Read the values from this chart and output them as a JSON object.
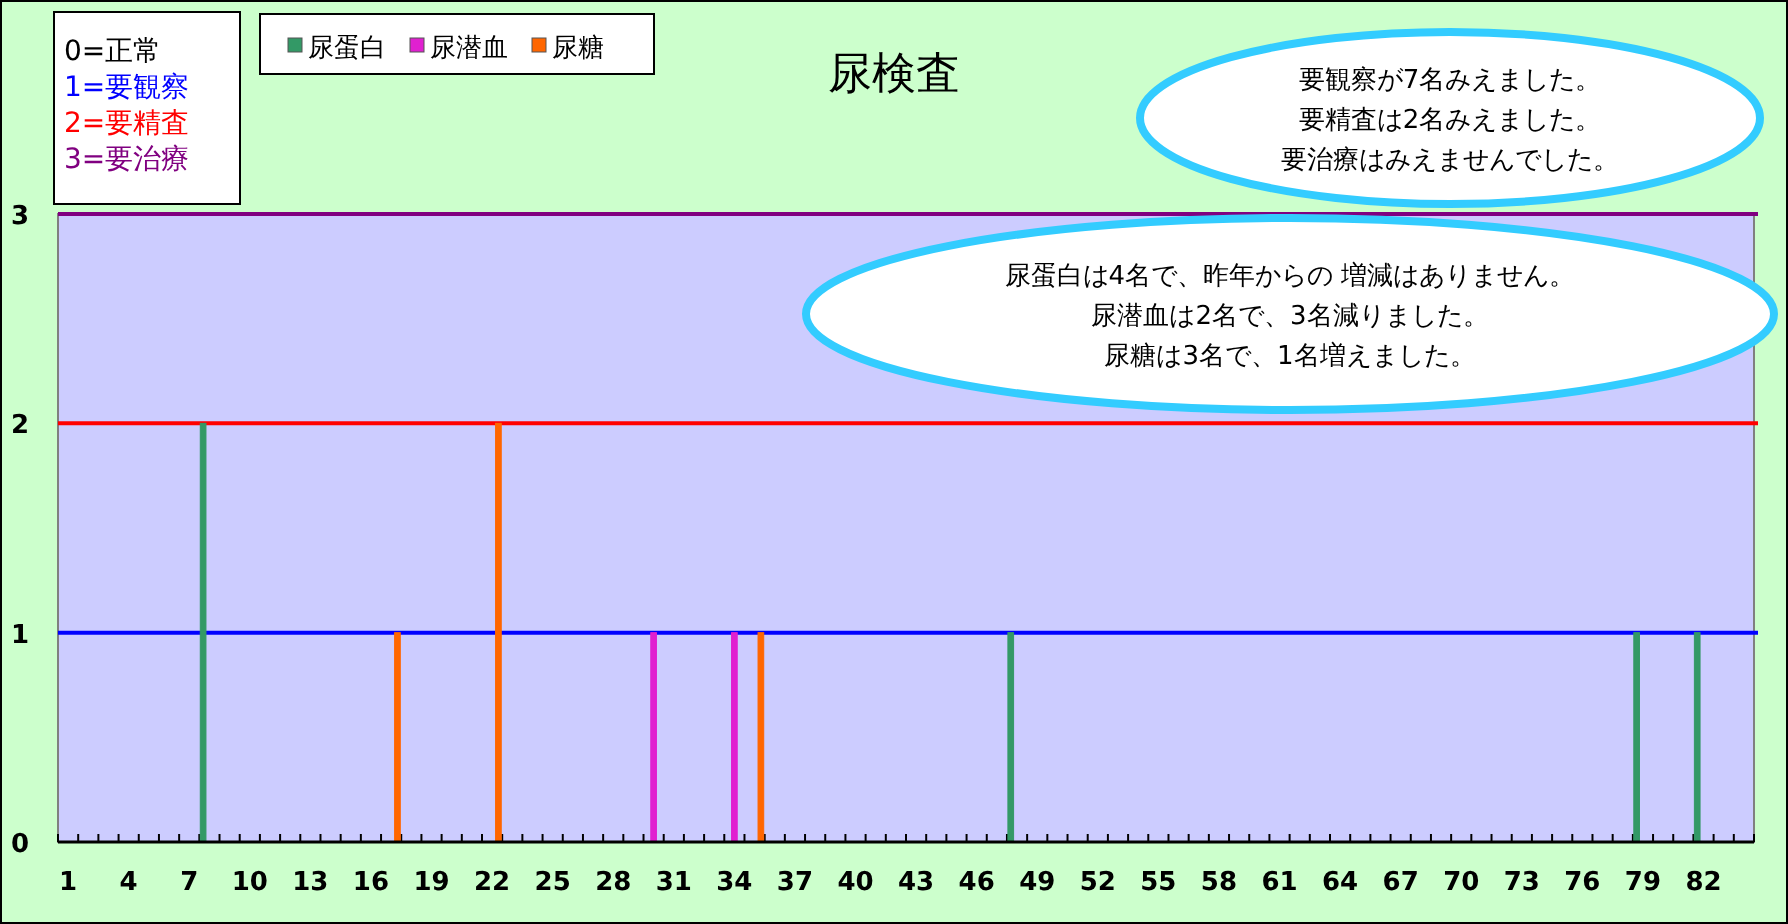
{
  "chart_data": {
    "type": "bar",
    "title": "尿検査",
    "categories": [
      "1",
      null,
      null,
      "4",
      null,
      null,
      "7",
      null,
      null,
      "10",
      null,
      null,
      "13",
      null,
      null,
      "16",
      null,
      null,
      "19",
      null,
      null,
      "22",
      null,
      null,
      "25",
      null,
      null,
      "28",
      null,
      null,
      "31",
      null,
      null,
      "34",
      null,
      null,
      "37",
      null,
      null,
      "40",
      null,
      null,
      "43",
      null,
      null,
      "46",
      null,
      null,
      "49",
      null,
      null,
      "52",
      null,
      null,
      "55",
      null,
      null,
      "58",
      null,
      null,
      "61",
      null,
      null,
      "64",
      null,
      null,
      "67",
      null,
      null,
      "70",
      null,
      null,
      "73",
      null,
      null,
      "76",
      null,
      null,
      "79",
      null,
      null,
      "82",
      null,
      null
    ],
    "series": [
      {
        "name": "尿蛋白",
        "color": "#339966",
        "values": [
          0,
          0,
          0,
          0,
          0,
          0,
          0,
          2,
          0,
          0,
          0,
          0,
          0,
          0,
          0,
          0,
          0,
          0,
          0,
          0,
          0,
          0,
          0,
          0,
          0,
          0,
          0,
          0,
          0,
          0,
          0,
          0,
          0,
          0,
          0,
          0,
          0,
          0,
          0,
          0,
          0,
          0,
          0,
          0,
          0,
          0,
          0,
          1,
          0,
          0,
          0,
          0,
          0,
          0,
          0,
          0,
          0,
          0,
          0,
          0,
          0,
          0,
          0,
          0,
          0,
          0,
          0,
          0,
          0,
          0,
          0,
          0,
          0,
          0,
          0,
          0,
          0,
          0,
          1,
          0,
          0,
          1,
          0,
          0
        ]
      },
      {
        "name": "尿潜血",
        "color": "#e020d0",
        "values": [
          0,
          0,
          0,
          0,
          0,
          0,
          0,
          0,
          0,
          0,
          0,
          0,
          0,
          0,
          0,
          0,
          0,
          0,
          0,
          0,
          0,
          0,
          0,
          0,
          0,
          0,
          0,
          0,
          0,
          1,
          0,
          0,
          0,
          1,
          0,
          0,
          0,
          0,
          0,
          0,
          0,
          0,
          0,
          0,
          0,
          0,
          0,
          0,
          0,
          0,
          0,
          0,
          0,
          0,
          0,
          0,
          0,
          0,
          0,
          0,
          0,
          0,
          0,
          0,
          0,
          0,
          0,
          0,
          0,
          0,
          0,
          0,
          0,
          0,
          0,
          0,
          0,
          0,
          0,
          0,
          0,
          0,
          0,
          0
        ]
      },
      {
        "name": "尿糖",
        "color": "#ff6600",
        "values": [
          0,
          0,
          0,
          0,
          0,
          0,
          0,
          0,
          0,
          0,
          0,
          0,
          0,
          0,
          0,
          0,
          1,
          0,
          0,
          0,
          0,
          2,
          0,
          0,
          0,
          0,
          0,
          0,
          0,
          0,
          0,
          0,
          0,
          0,
          1,
          0,
          0,
          0,
          0,
          0,
          0,
          0,
          0,
          0,
          0,
          0,
          0,
          0,
          0,
          0,
          0,
          0,
          0,
          0,
          0,
          0,
          0,
          0,
          0,
          0,
          0,
          0,
          0,
          0,
          0,
          0,
          0,
          0,
          0,
          0,
          0,
          0,
          0,
          0,
          0,
          0,
          0,
          0,
          0,
          0,
          0,
          0,
          0,
          0
        ]
      }
    ],
    "ylim": [
      0,
      3
    ],
    "yticks": [
      0,
      1,
      2,
      3
    ],
    "legend": "top",
    "ref_lines": [
      {
        "axis": "y",
        "value": 1,
        "label": "1=要観察",
        "color": "#0000ff"
      },
      {
        "axis": "y",
        "value": 2,
        "label": "2=要精査",
        "color": "#ff0000"
      },
      {
        "axis": "y",
        "value": 3,
        "label": "3=要治療",
        "color": "#800080"
      }
    ],
    "annotations": [
      "0=正常",
      "要観察が7名みえました。",
      "要精査は2名みえました。",
      "要治療はみえませんでした。",
      "尿蛋白は4名で、昨年からの 増減はありません。",
      "尿潜血は2名で、3名減りました。",
      "尿糖は3名で、1名増えました。"
    ]
  }
}
